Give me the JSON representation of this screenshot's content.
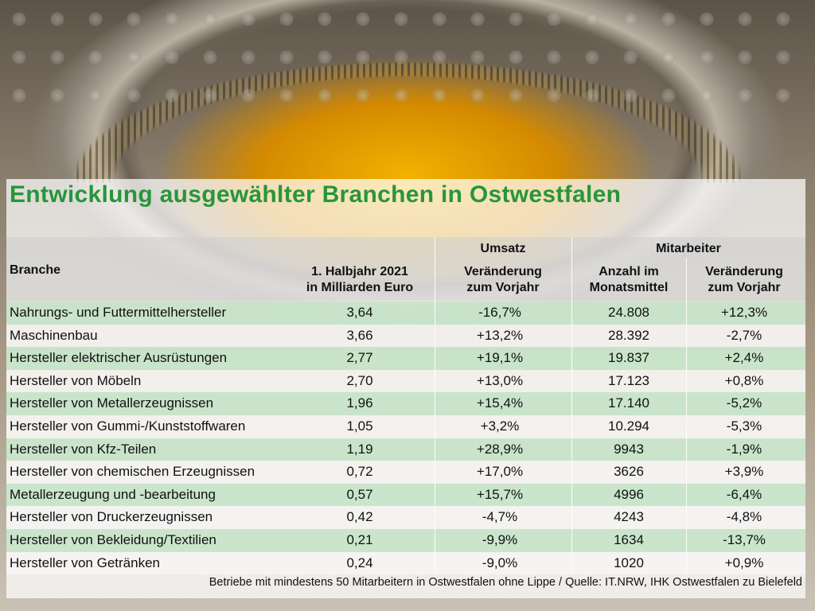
{
  "title": "Entwicklung ausgewählter Branchen in Ostwestfalen",
  "headers": {
    "group_umsatz": "Umsatz",
    "group_mitarbeiter": "Mitarbeiter",
    "branche": "Branche",
    "col2_l1": "1. Halbjahr 2021",
    "col2_l2": "in Milliarden Euro",
    "col3_l1": "Veränderung",
    "col3_l2": "zum Vorjahr",
    "col4_l1": "Anzahl im",
    "col4_l2": "Monatsmittel",
    "col5_l1": "Veränderung",
    "col5_l2": "zum Vorjahr"
  },
  "rows": [
    [
      "Nahrungs- und Futtermittelhersteller",
      "3,64",
      "-16,7%",
      "24.808",
      "+12,3%"
    ],
    [
      "Maschinenbau",
      "3,66",
      "+13,2%",
      "28.392",
      "-2,7%"
    ],
    [
      "Hersteller elektrischer Ausrüstungen",
      "2,77",
      "+19,1%",
      "19.837",
      "+2,4%"
    ],
    [
      "Hersteller von Möbeln",
      "2,70",
      "+13,0%",
      "17.123",
      "+0,8%"
    ],
    [
      "Hersteller von Metallerzeugnissen",
      "1,96",
      "+15,4%",
      "17.140",
      "-5,2%"
    ],
    [
      "Hersteller von Gummi-/Kunststoffwaren",
      "1,05",
      "+3,2%",
      "10.294",
      "-5,3%"
    ],
    [
      "Hersteller von Kfz-Teilen",
      "1,19",
      "+28,9%",
      "9943",
      "-1,9%"
    ],
    [
      "Hersteller von chemischen Erzeugnissen",
      "0,72",
      "+17,0%",
      "3626",
      "+3,9%"
    ],
    [
      "Metallerzeugung und -bearbeitung",
      "0,57",
      "+15,7%",
      "4996",
      "-6,4%"
    ],
    [
      "Hersteller von Druckerzeugnissen",
      "0,42",
      "-4,7%",
      "4243",
      "-4,8%"
    ],
    [
      "Hersteller von Bekleidung/Textilien",
      "0,21",
      "-9,9%",
      "1634",
      "-13,7%"
    ],
    [
      "Hersteller von Getränken",
      "0,24",
      "-9,0%",
      "1020",
      "+0,9%"
    ]
  ],
  "footnote": "Betriebe mit mindestens 50 Mitarbeitern in Ostwestfalen ohne Lippe / Quelle: IT.NRW, IHK Ostwestfalen zu Bielefeld",
  "colors": {
    "title": "#27963a",
    "row_alt": "#c0e4c4"
  }
}
